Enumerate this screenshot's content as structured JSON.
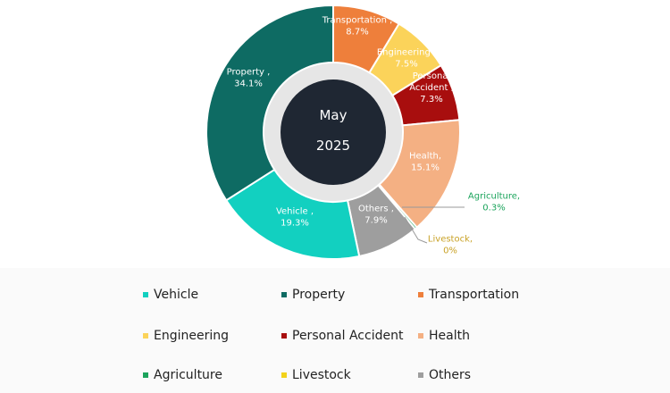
{
  "chart_data": {
    "type": "donut",
    "title": "",
    "center_label": {
      "line1": "May",
      "line2": "2025"
    },
    "slices": [
      {
        "name": "Transportation",
        "label_text": "Transportation ,",
        "value_text": "8.7%",
        "value": 8.7,
        "color": "#EE7F3B",
        "label_color": "#ffffff"
      },
      {
        "name": "Engineering",
        "label_text": "Engineering ,",
        "value_text": "7.5%",
        "value": 7.5,
        "color": "#FBD35A",
        "label_color": "#ffffff"
      },
      {
        "name": "Personal Accident",
        "label_text": "Personal Accident ,",
        "value_text": "7.3%",
        "value": 7.3,
        "color": "#A80E0E",
        "label_color": "#ffffff"
      },
      {
        "name": "Health",
        "label_text": "Health,",
        "value_text": "15.1%",
        "value": 15.1,
        "color": "#F4B083",
        "label_color": "#ffffff"
      },
      {
        "name": "Agriculture",
        "label_text": "Agriculture,",
        "value_text": "0.3%",
        "value": 0.3,
        "color": "#1CA45C",
        "label_color": "#1CA45C"
      },
      {
        "name": "Livestock",
        "label_text": "Livestock,",
        "value_text": "0%",
        "value": 0,
        "color": "#F2D21B",
        "label_color": "#C9A227"
      },
      {
        "name": "Others",
        "label_text": "Others ,",
        "value_text": "7.9%",
        "value": 7.9,
        "color": "#9E9E9E",
        "label_color": "#ffffff"
      },
      {
        "name": "Vehicle",
        "label_text": "Vehicle ,",
        "value_text": "19.3%",
        "value": 19.3,
        "color": "#12D0C0",
        "label_color": "#ffffff"
      },
      {
        "name": "Property",
        "label_text": "Property ,",
        "value_text": "34.1%",
        "value": 34.1,
        "color": "#0E6B63",
        "label_color": "#ffffff"
      }
    ],
    "legend": {
      "placement": "bottom",
      "items": [
        {
          "name": "Vehicle",
          "color": "#12D0C0"
        },
        {
          "name": "Property",
          "color": "#0E6B63"
        },
        {
          "name": "Transportation",
          "color": "#EE7F3B"
        },
        {
          "name": "Engineering",
          "color": "#FBD35A"
        },
        {
          "name": "Personal Accident",
          "color": "#A80E0E"
        },
        {
          "name": "Health",
          "color": "#F4B083"
        },
        {
          "name": "Agriculture",
          "color": "#1CA45C"
        },
        {
          "name": "Livestock",
          "color": "#F2D21B"
        },
        {
          "name": "Others",
          "color": "#9E9E9E"
        }
      ]
    },
    "center_color": "#1F2733",
    "ring_color": "#E6E6E6"
  }
}
